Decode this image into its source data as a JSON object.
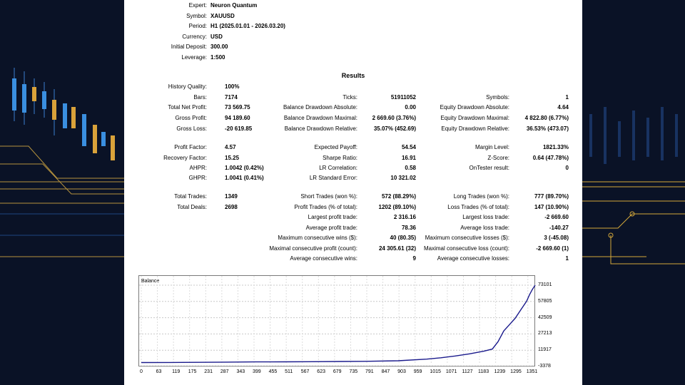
{
  "header": {
    "rows": [
      {
        "label": "Expert:",
        "value": "Neuron Quantum"
      },
      {
        "label": "Symbol:",
        "value": "XAUUSD"
      },
      {
        "label": "Period:",
        "value": "H1 (2025.01.01 - 2026.03.20)"
      },
      {
        "label": "Currency:",
        "value": "USD"
      },
      {
        "label": "Initial Deposit:",
        "value": "300.00"
      },
      {
        "label": "Leverage:",
        "value": "1:500"
      }
    ]
  },
  "results_title": "Results",
  "col1": [
    {
      "label": "History Quality:",
      "value": "100%"
    },
    {
      "label": "Bars:",
      "value": "7174"
    },
    {
      "label": "Total Net Profit:",
      "value": "73 569.75"
    },
    {
      "label": "Gross Profit:",
      "value": "94 189.60"
    },
    {
      "label": "Gross Loss:",
      "value": "-20 619.85"
    },
    {
      "label": "",
      "value": ""
    },
    {
      "label": "Profit Factor:",
      "value": "4.57"
    },
    {
      "label": "Recovery Factor:",
      "value": "15.25"
    },
    {
      "label": "AHPR:",
      "value": "1.0042 (0.42%)"
    },
    {
      "label": "GHPR:",
      "value": "1.0041 (0.41%)"
    },
    {
      "label": "",
      "value": ""
    },
    {
      "label": "Total Trades:",
      "value": "1349"
    },
    {
      "label": "Total Deals:",
      "value": "2698"
    }
  ],
  "col2": [
    {
      "label": "",
      "value": ""
    },
    {
      "label": "Ticks:",
      "value": "51911052"
    },
    {
      "label": "Balance Drawdown Absolute:",
      "value": "0.00"
    },
    {
      "label": "Balance Drawdown Maximal:",
      "value": "2 669.60 (3.76%)"
    },
    {
      "label": "Balance Drawdown Relative:",
      "value": "35.07% (452.69)"
    },
    {
      "label": "",
      "value": ""
    },
    {
      "label": "Expected Payoff:",
      "value": "54.54"
    },
    {
      "label": "Sharpe Ratio:",
      "value": "16.91"
    },
    {
      "label": "LR Correlation:",
      "value": "0.58"
    },
    {
      "label": "LR Standard Error:",
      "value": "10 321.02"
    },
    {
      "label": "",
      "value": ""
    },
    {
      "label": "Short Trades (won %):",
      "value": "572 (88.29%)"
    },
    {
      "label": "Profit Trades (% of total):",
      "value": "1202 (89.10%)"
    },
    {
      "label": "Largest profit trade:",
      "value": "2 316.16"
    },
    {
      "label": "Average profit trade:",
      "value": "78.36"
    },
    {
      "label": "Maximum consecutive wins ($):",
      "value": "40 (80.35)"
    },
    {
      "label": "Maximal consecutive profit (count):",
      "value": "24 305.61 (32)"
    },
    {
      "label": "Average consecutive wins:",
      "value": "9"
    }
  ],
  "col3": [
    {
      "label": "",
      "value": ""
    },
    {
      "label": "Symbols:",
      "value": "1"
    },
    {
      "label": "Equity Drawdown Absolute:",
      "value": "4.64"
    },
    {
      "label": "Equity Drawdown Maximal:",
      "value": "4 822.80 (6.77%)"
    },
    {
      "label": "Equity Drawdown Relative:",
      "value": "36.53% (473.07)"
    },
    {
      "label": "",
      "value": ""
    },
    {
      "label": "Margin Level:",
      "value": "1821.33%"
    },
    {
      "label": "Z-Score:",
      "value": "0.64 (47.78%)"
    },
    {
      "label": "OnTester result:",
      "value": "0"
    },
    {
      "label": "",
      "value": ""
    },
    {
      "label": "",
      "value": ""
    },
    {
      "label": "Long Trades (won %):",
      "value": "777 (89.70%)"
    },
    {
      "label": "Loss Trades (% of total):",
      "value": "147 (10.90%)"
    },
    {
      "label": "Largest loss trade:",
      "value": "-2 669.60"
    },
    {
      "label": "Average loss trade:",
      "value": "-140.27"
    },
    {
      "label": "Maximum consecutive losses ($):",
      "value": "3 (-45.08)"
    },
    {
      "label": "Maximal consecutive loss (count):",
      "value": "-2 669.60 (1)"
    },
    {
      "label": "Average consecutive losses:",
      "value": "1"
    }
  ],
  "chart_data": {
    "type": "line",
    "title": "Balance",
    "x_ticks": [
      "0",
      "63",
      "119",
      "175",
      "231",
      "287",
      "343",
      "399",
      "455",
      "511",
      "567",
      "623",
      "679",
      "735",
      "791",
      "847",
      "903",
      "959",
      "1015",
      "1071",
      "1127",
      "1183",
      "1239",
      "1295",
      "1351"
    ],
    "y_ticks": [
      "73101",
      "57805",
      "42509",
      "27213",
      "11917",
      "-3378"
    ],
    "ylim": [
      -3378,
      73101
    ],
    "xlim": [
      0,
      1380
    ],
    "series": [
      {
        "name": "",
        "color": "#1a1a8c",
        "x": [
          0,
          100,
          200,
          300,
          400,
          500,
          600,
          700,
          800,
          900,
          1000,
          1050,
          1100,
          1150,
          1200,
          1230,
          1250,
          1270,
          1290,
          1310,
          1330,
          1350,
          1360,
          1370,
          1380
        ],
        "y": [
          300,
          350,
          500,
          700,
          900,
          1000,
          1150,
          1300,
          1500,
          2000,
          3500,
          4800,
          6500,
          8500,
          11000,
          13000,
          20000,
          30000,
          36000,
          42000,
          50000,
          58000,
          64000,
          69000,
          73101
        ]
      }
    ]
  }
}
